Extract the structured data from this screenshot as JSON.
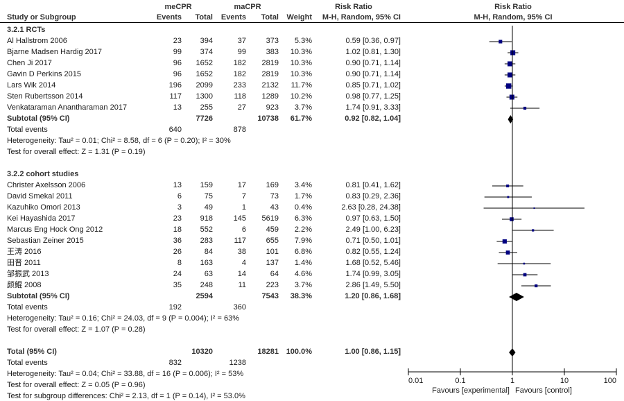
{
  "header": {
    "group1": "meCPR",
    "group2": "maCPR",
    "col_study": "Study or Subgroup",
    "col_events": "Events",
    "col_total": "Total",
    "col_weight": "Weight",
    "rr_title": "Risk Ratio",
    "rr_method": "M-H, Random, 95% CI",
    "plot_title": "Risk Ratio",
    "plot_method": "M-H, Random, 95% CI"
  },
  "chart_data": {
    "type": "forest",
    "title": "Risk Ratio",
    "subtitle": "M-H, Random, 95% CI",
    "x_scale": "log",
    "xlim": [
      0.01,
      100
    ],
    "x_ticks": [
      "0.01",
      "0.1",
      "1",
      "10",
      "100"
    ],
    "x_tick_values": [
      0.01,
      0.1,
      1,
      10,
      100
    ],
    "xlabel_left": "Favours [experimental]",
    "xlabel_right": "Favours [control]",
    "reference_line": 1,
    "subgroups": [
      {
        "name": "3.2.1 RCTs",
        "studies": [
          {
            "study": "Al Hallstrom 2006",
            "e1": "23",
            "n1": "394",
            "e2": "37",
            "n2": "373",
            "weight": "5.3%",
            "rr": 0.59,
            "lo": 0.36,
            "hi": 0.97,
            "ci_text": "0.59 [0.36, 0.97]"
          },
          {
            "study": "Bjarne Madsen Hardig 2017",
            "e1": "99",
            "n1": "374",
            "e2": "99",
            "n2": "383",
            "weight": "10.3%",
            "rr": 1.02,
            "lo": 0.81,
            "hi": 1.3,
            "ci_text": "1.02 [0.81, 1.30]"
          },
          {
            "study": "Chen Ji 2017",
            "e1": "96",
            "n1": "1652",
            "e2": "182",
            "n2": "2819",
            "weight": "10.3%",
            "rr": 0.9,
            "lo": 0.71,
            "hi": 1.14,
            "ci_text": "0.90 [0.71, 1.14]"
          },
          {
            "study": "Gavin D Perkins 2015",
            "e1": "96",
            "n1": "1652",
            "e2": "182",
            "n2": "2819",
            "weight": "10.3%",
            "rr": 0.9,
            "lo": 0.71,
            "hi": 1.14,
            "ci_text": "0.90 [0.71, 1.14]"
          },
          {
            "study": "Lars Wik 2014",
            "e1": "196",
            "n1": "2099",
            "e2": "233",
            "n2": "2132",
            "weight": "11.7%",
            "rr": 0.85,
            "lo": 0.71,
            "hi": 1.02,
            "ci_text": "0.85 [0.71, 1.02]"
          },
          {
            "study": "Sten Rubertsson 2014",
            "e1": "117",
            "n1": "1300",
            "e2": "118",
            "n2": "1289",
            "weight": "10.2%",
            "rr": 0.98,
            "lo": 0.77,
            "hi": 1.25,
            "ci_text": "0.98 [0.77, 1.25]"
          },
          {
            "study": "Venkataraman Anantharaman 2017",
            "e1": "13",
            "n1": "255",
            "e2": "27",
            "n2": "923",
            "weight": "3.7%",
            "rr": 1.74,
            "lo": 0.91,
            "hi": 3.33,
            "ci_text": "1.74 [0.91, 3.33]"
          }
        ],
        "subtotal": {
          "label": "Subtotal (95% CI)",
          "n1": "7726",
          "n2": "10738",
          "weight": "61.7%",
          "rr": 0.92,
          "lo": 0.82,
          "hi": 1.04,
          "ci_text": "0.92 [0.82, 1.04]"
        },
        "total_events": {
          "label": "Total events",
          "e1": "640",
          "e2": "878"
        },
        "heterogeneity": "Heterogeneity: Tau² = 0.01; Chi² = 8.58, df = 6 (P = 0.20); I² = 30%",
        "overall_effect": "Test for overall effect: Z = 1.31 (P = 0.19)"
      },
      {
        "name": "3.2.2 cohort studies",
        "studies": [
          {
            "study": "Christer Axelsson 2006",
            "e1": "13",
            "n1": "159",
            "e2": "17",
            "n2": "169",
            "weight": "3.4%",
            "rr": 0.81,
            "lo": 0.41,
            "hi": 1.62,
            "ci_text": "0.81 [0.41, 1.62]"
          },
          {
            "study": "David Smekal 2011",
            "e1": "6",
            "n1": "75",
            "e2": "7",
            "n2": "73",
            "weight": "1.7%",
            "rr": 0.83,
            "lo": 0.29,
            "hi": 2.36,
            "ci_text": "0.83 [0.29, 2.36]"
          },
          {
            "study": "Kazuhiko Omori 2013",
            "e1": "3",
            "n1": "49",
            "e2": "1",
            "n2": "43",
            "weight": "0.4%",
            "rr": 2.63,
            "lo": 0.28,
            "hi": 24.38,
            "ci_text": "2.63 [0.28, 24.38]"
          },
          {
            "study": "Kei Hayashida 2017",
            "e1": "23",
            "n1": "918",
            "e2": "145",
            "n2": "5619",
            "weight": "6.3%",
            "rr": 0.97,
            "lo": 0.63,
            "hi": 1.5,
            "ci_text": "0.97 [0.63, 1.50]"
          },
          {
            "study": "Marcus Eng Hock Ong 2012",
            "e1": "18",
            "n1": "552",
            "e2": "6",
            "n2": "459",
            "weight": "2.2%",
            "rr": 2.49,
            "lo": 1.0,
            "hi": 6.23,
            "ci_text": "2.49 [1.00, 6.23]"
          },
          {
            "study": "Sebastian Zeiner 2015",
            "e1": "36",
            "n1": "283",
            "e2": "117",
            "n2": "655",
            "weight": "7.9%",
            "rr": 0.71,
            "lo": 0.5,
            "hi": 1.01,
            "ci_text": "0.71 [0.50, 1.01]"
          },
          {
            "study": "王涛 2016",
            "e1": "26",
            "n1": "84",
            "e2": "38",
            "n2": "101",
            "weight": "6.8%",
            "rr": 0.82,
            "lo": 0.55,
            "hi": 1.24,
            "ci_text": "0.82 [0.55, 1.24]"
          },
          {
            "study": "田晋 2011",
            "e1": "8",
            "n1": "163",
            "e2": "4",
            "n2": "137",
            "weight": "1.4%",
            "rr": 1.68,
            "lo": 0.52,
            "hi": 5.46,
            "ci_text": "1.68 [0.52, 5.46]"
          },
          {
            "study": "邹振武 2013",
            "e1": "24",
            "n1": "63",
            "e2": "14",
            "n2": "64",
            "weight": "4.6%",
            "rr": 1.74,
            "lo": 0.99,
            "hi": 3.05,
            "ci_text": "1.74 [0.99, 3.05]"
          },
          {
            "study": "颜鲲 2008",
            "e1": "35",
            "n1": "248",
            "e2": "11",
            "n2": "223",
            "weight": "3.7%",
            "rr": 2.86,
            "lo": 1.49,
            "hi": 5.5,
            "ci_text": "2.86 [1.49, 5.50]"
          }
        ],
        "subtotal": {
          "label": "Subtotal (95% CI)",
          "n1": "2594",
          "n2": "7543",
          "weight": "38.3%",
          "rr": 1.2,
          "lo": 0.86,
          "hi": 1.68,
          "ci_text": "1.20 [0.86, 1.68]"
        },
        "total_events": {
          "label": "Total events",
          "e1": "192",
          "e2": "360"
        },
        "heterogeneity": "Heterogeneity: Tau² = 0.16; Chi² = 24.03, df = 9 (P = 0.004); I² = 63%",
        "overall_effect": "Test for overall effect: Z = 1.07 (P = 0.28)"
      }
    ],
    "total": {
      "label": "Total (95% CI)",
      "n1": "10320",
      "n2": "18281",
      "weight": "100.0%",
      "rr": 1.0,
      "lo": 0.86,
      "hi": 1.15,
      "ci_text": "1.00 [0.86, 1.15]"
    },
    "total_events": {
      "label": "Total events",
      "e1": "832",
      "e2": "1238"
    },
    "heterogeneity": "Heterogeneity: Tau² = 0.04; Chi² = 33.88, df = 16 (P = 0.006); I² = 53%",
    "overall_effect": "Test for overall effect: Z = 0.05 (P = 0.96)",
    "subgroup_differences": "Test for subgroup differences: Chi² = 2.13, df = 1 (P = 0.14), I² = 53.0%",
    "colors": {
      "square": "#000080",
      "line": "#000000",
      "diamond": "#000000"
    }
  }
}
